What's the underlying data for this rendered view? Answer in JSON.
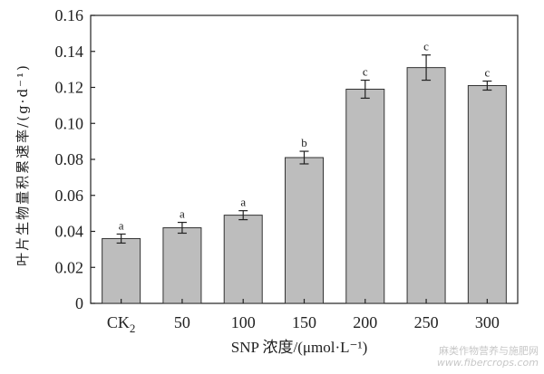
{
  "chart_data": {
    "type": "bar",
    "categories": [
      "CK",
      "50",
      "100",
      "150",
      "200",
      "250",
      "300"
    ],
    "category_subscripts": [
      "2",
      "",
      "",
      "",
      "",
      "",
      ""
    ],
    "values": [
      0.036,
      0.042,
      0.049,
      0.081,
      0.119,
      0.131,
      0.121
    ],
    "error": [
      0.0025,
      0.003,
      0.0025,
      0.0035,
      0.005,
      0.007,
      0.0025
    ],
    "significance": [
      "a",
      "a",
      "a",
      "b",
      "c",
      "c",
      "c"
    ],
    "ylabel": "叶片生物量积累速率/(g·d⁻¹)",
    "xlabel": "SNP 浓度/(μmol·L⁻¹)",
    "ylim": [
      0,
      0.16
    ],
    "yticks": [
      "0",
      "0.02",
      "0.04",
      "0.06",
      "0.08",
      "0.10",
      "0.12",
      "0.14",
      "0.16"
    ],
    "grid": false,
    "colors": {
      "bar_fill": "#bdbdbd",
      "bar_stroke": "#333333",
      "axis": "#222222"
    }
  },
  "watermark": {
    "line1": "麻类作物营养与施肥网",
    "line2": "www.fibercrops.com"
  }
}
